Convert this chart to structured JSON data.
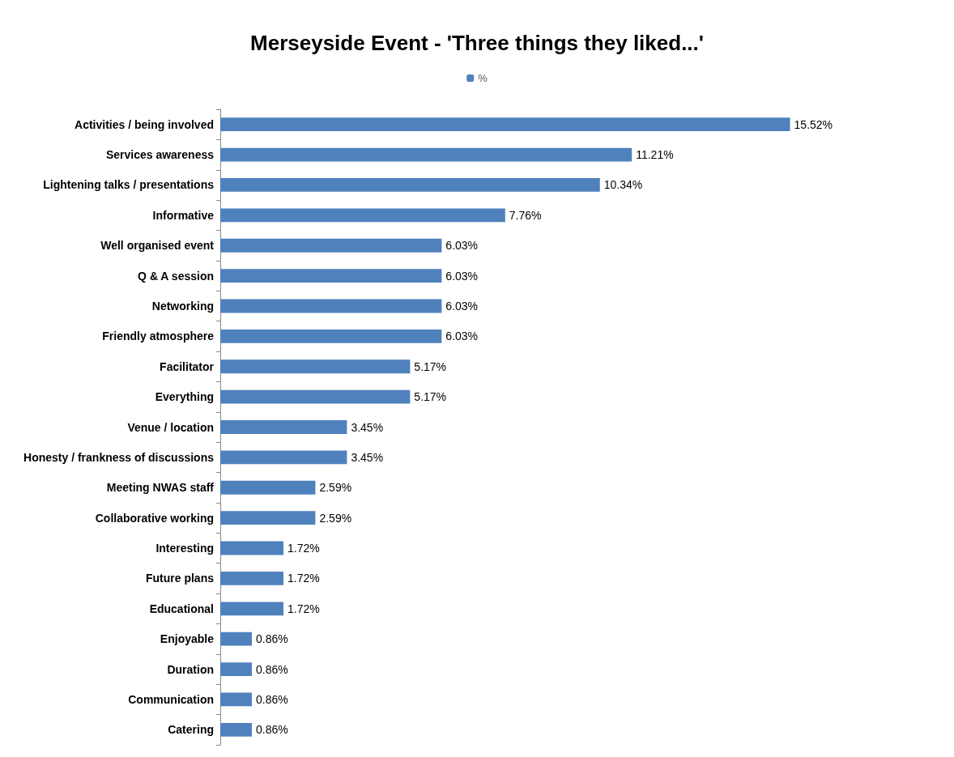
{
  "chart_data": {
    "type": "bar",
    "orientation": "horizontal",
    "title": "Merseyside Event - 'Three things they liked...'",
    "categories": [
      "Activities / being involved",
      "Services awareness",
      "Lightening talks / presentations",
      "Informative",
      "Well organised event",
      "Q & A session",
      "Networking",
      "Friendly atmosphere",
      "Facilitator",
      "Everything",
      "Venue / location",
      "Honesty / frankness of discussions",
      "Meeting NWAS staff",
      "Collaborative working",
      "Interesting",
      "Future plans",
      "Educational",
      "Enjoyable",
      "Duration",
      "Communication",
      "Catering"
    ],
    "series": [
      {
        "name": "%",
        "color": "#4f81bd",
        "values": [
          15.52,
          11.21,
          10.34,
          7.76,
          6.03,
          6.03,
          6.03,
          6.03,
          5.17,
          5.17,
          3.45,
          3.45,
          2.59,
          2.59,
          1.72,
          1.72,
          1.72,
          0.86,
          0.86,
          0.86,
          0.86
        ],
        "value_labels": [
          "15.52%",
          "11.21%",
          "10.34%",
          "7.76%",
          "6.03%",
          "6.03%",
          "6.03%",
          "6.03%",
          "5.17%",
          "5.17%",
          "3.45%",
          "3.45%",
          "2.59%",
          "2.59%",
          "1.72%",
          "1.72%",
          "1.72%",
          "0.86%",
          "0.86%",
          "0.86%",
          "0.86%"
        ]
      }
    ],
    "legend": "top"
  }
}
